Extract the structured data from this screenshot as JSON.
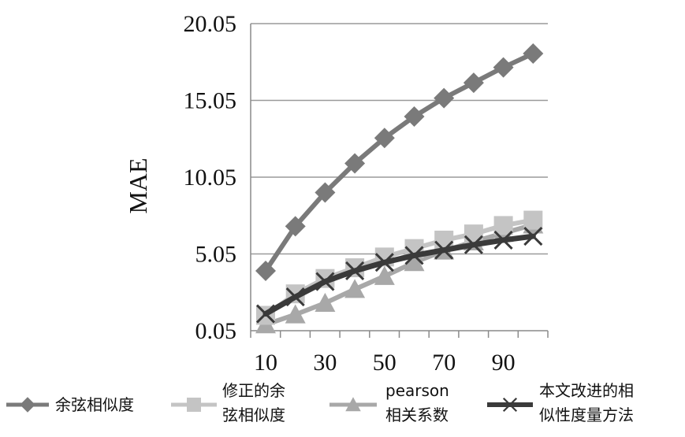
{
  "chart_data": {
    "type": "line",
    "title": "",
    "xlabel": "",
    "ylabel": "MAE",
    "x": [
      10,
      20,
      30,
      40,
      50,
      60,
      70,
      80,
      90,
      100
    ],
    "x_tick_labels": [
      "10",
      "30",
      "50",
      "70",
      "90"
    ],
    "x_tick_values": [
      10,
      30,
      50,
      70,
      90
    ],
    "y_tick_labels": [
      "0.05",
      "5.05",
      "10.05",
      "15.05",
      "20.05"
    ],
    "y_tick_values": [
      0.05,
      5.05,
      10.05,
      15.05,
      20.05
    ],
    "ylim": [
      0.05,
      20.05
    ],
    "grid": "horizontal",
    "legend_position": "bottom",
    "series": [
      {
        "name": "余弦相似度",
        "legend_lines": [
          "余弦相似度"
        ],
        "values": [
          3.95,
          6.85,
          9.05,
          10.95,
          12.6,
          14.0,
          15.2,
          16.2,
          17.2,
          18.1
        ],
        "color": "#7a7a7a",
        "marker": "diamond"
      },
      {
        "name": "修正的余弦相似度",
        "legend_lines": [
          "修正的余",
          "弦相似度"
        ],
        "values": [
          1.05,
          2.45,
          3.45,
          4.15,
          4.85,
          5.4,
          5.95,
          6.35,
          6.9,
          7.25
        ],
        "color": "#c4c4c4",
        "marker": "square"
      },
      {
        "name": "pearson相关系数",
        "legend_lines": [
          "pearson",
          "相关系数"
        ],
        "values": [
          0.45,
          1.1,
          1.85,
          2.75,
          3.6,
          4.5,
          5.25,
          5.85,
          6.4,
          6.95
        ],
        "color": "#a8a8a8",
        "marker": "triangle"
      },
      {
        "name": "本文改进的相似性度量方法",
        "legend_lines": [
          "本文改进的相",
          "似性度量方法"
        ],
        "values": [
          1.15,
          2.25,
          3.25,
          3.95,
          4.5,
          4.95,
          5.3,
          5.65,
          5.95,
          6.2
        ],
        "color": "#3a3a3a",
        "marker": "x"
      }
    ]
  }
}
